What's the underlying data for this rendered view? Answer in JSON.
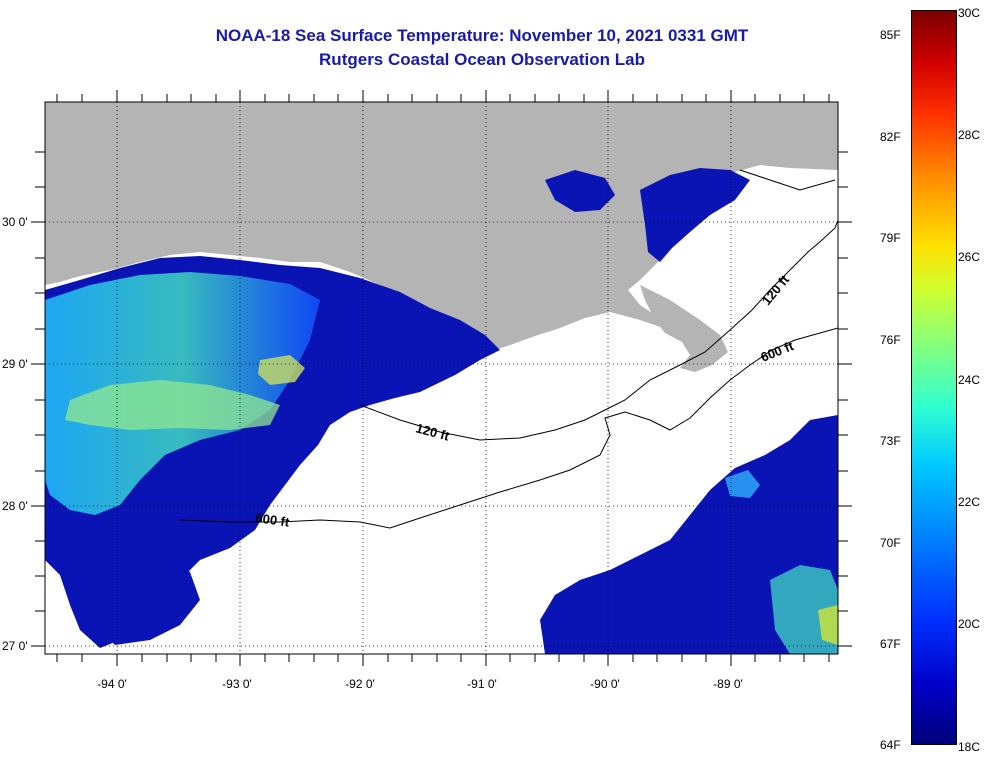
{
  "header": {
    "title": "NOAA-18 Sea Surface Temperature:  November 10, 2021 0331 GMT",
    "subtitle": "Rutgers Coastal Ocean Observation Lab"
  },
  "map": {
    "lon_labels": [
      "-94 0'",
      "-93 0'",
      "-92 0'",
      "-91 0'",
      "-90 0'",
      "-89 0'"
    ],
    "lat_labels": [
      "30 0'",
      "29 0'",
      "28 0'",
      "27 0'"
    ],
    "contour_labels": [
      "120 ft",
      "600 ft",
      "120 ft",
      "600 ft"
    ]
  },
  "colorbar": {
    "fahrenheit": [
      "85F",
      "82F",
      "79F",
      "76F",
      "73F",
      "70F",
      "67F",
      "64F"
    ],
    "celsius": [
      "30C",
      "28C",
      "26C",
      "24C",
      "22C",
      "20C",
      "18C"
    ]
  }
}
